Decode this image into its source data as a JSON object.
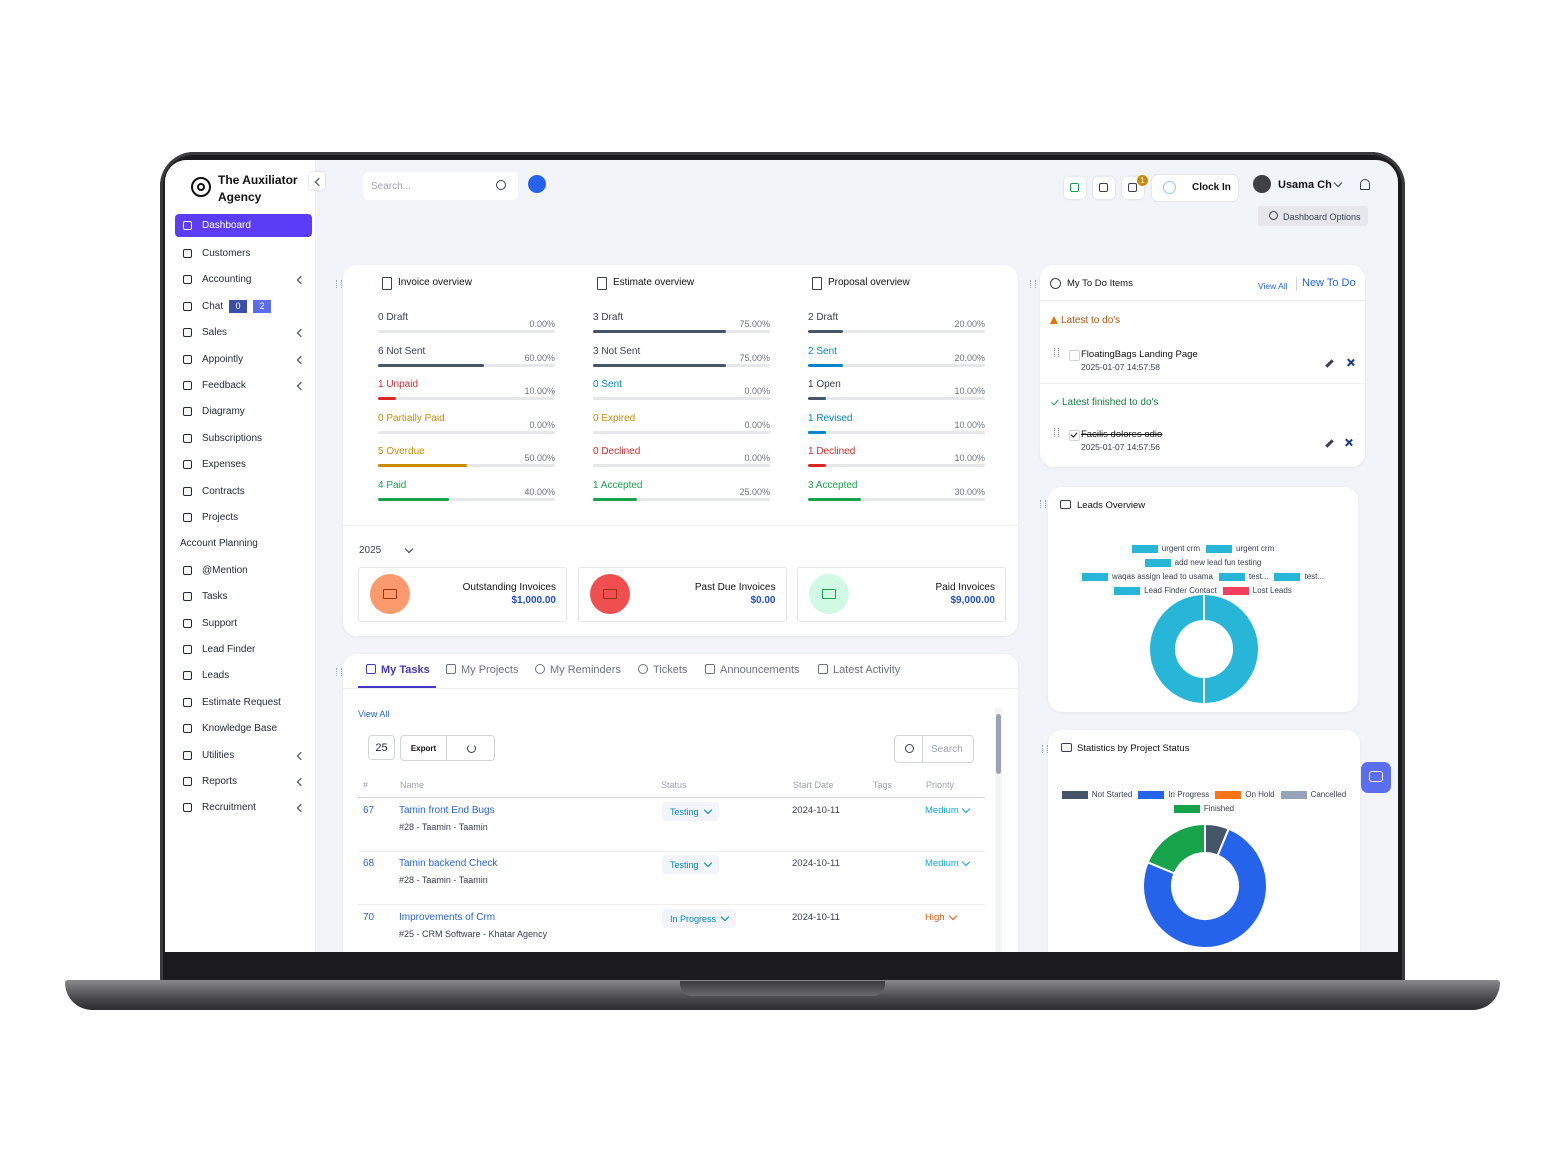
{
  "brand": "The Auxiliator Agency",
  "sidebar": [
    {
      "label": "Dashboard",
      "active": true
    },
    {
      "label": "Customers"
    },
    {
      "label": "Accounting",
      "submenu": true
    },
    {
      "label": "Chat",
      "badges": [
        "0",
        "2"
      ]
    },
    {
      "label": "Sales",
      "submenu": true
    },
    {
      "label": "Appointly",
      "submenu": true
    },
    {
      "label": "Feedback",
      "submenu": true
    },
    {
      "label": "Diagramy"
    },
    {
      "label": "Subscriptions"
    },
    {
      "label": "Expenses"
    },
    {
      "label": "Contracts"
    },
    {
      "label": "Projects"
    },
    {
      "label": "Account Planning",
      "no_icon": true
    },
    {
      "label": "@Mention"
    },
    {
      "label": "Tasks"
    },
    {
      "label": "Support"
    },
    {
      "label": "Lead Finder"
    },
    {
      "label": "Leads"
    },
    {
      "label": "Estimate Request"
    },
    {
      "label": "Knowledge Base"
    },
    {
      "label": "Utilities",
      "submenu": true
    },
    {
      "label": "Reports",
      "submenu": true
    },
    {
      "label": "Recruitment",
      "submenu": true
    }
  ],
  "header": {
    "search_placeholder": "Search...",
    "notification_count": "1",
    "clock_in": "Clock In",
    "user": "Usama Ch",
    "dashboard_options": "Dashboard Options"
  },
  "overviews": [
    {
      "title": "Invoice overview",
      "rows": [
        {
          "label": "0 Draft",
          "percent": {
            "value": 0,
            "label": "0.00%"
          },
          "color": "#475569"
        },
        {
          "label": "6 Not Sent",
          "percent": {
            "value": 60,
            "label": "60.00%"
          },
          "color": "#475569"
        },
        {
          "label": "1 Unpaid",
          "percent": {
            "value": 10,
            "label": "10.00%"
          },
          "color": "#dc2626"
        },
        {
          "label": "0 Partially Paid",
          "percent": {
            "value": 0,
            "label": "0.00%"
          },
          "color": "#ca8a04"
        },
        {
          "label": "5 Overdue",
          "percent": {
            "value": 50,
            "label": "50.00%"
          },
          "color": "#ca8a04"
        },
        {
          "label": "4 Paid",
          "percent": {
            "value": 40,
            "label": "40.00%"
          },
          "color": "#16a34a"
        }
      ]
    },
    {
      "title": "Estimate overview",
      "rows": [
        {
          "label": "3 Draft",
          "percent": {
            "value": 75,
            "label": "75.00%"
          },
          "color": "#475569"
        },
        {
          "label": "3 Not Sent",
          "percent": {
            "value": 75,
            "label": "75.00%"
          },
          "color": "#475569"
        },
        {
          "label": "0 Sent",
          "percent": {
            "value": 0,
            "label": "0.00%"
          },
          "color": "#0284c7"
        },
        {
          "label": "0 Expired",
          "percent": {
            "value": 0,
            "label": "0.00%"
          },
          "color": "#ca8a04"
        },
        {
          "label": "0 Declined",
          "percent": {
            "value": 0,
            "label": "0.00%"
          },
          "color": "#dc2626"
        },
        {
          "label": "1 Accepted",
          "percent": {
            "value": 25,
            "label": "25.00%"
          },
          "color": "#16a34a"
        }
      ]
    },
    {
      "title": "Proposal overview",
      "rows": [
        {
          "label": "2 Draft",
          "percent": {
            "value": 20,
            "label": "20.00%"
          },
          "color": "#475569"
        },
        {
          "label": "2 Sent",
          "percent": {
            "value": 20,
            "label": "20.00%"
          },
          "color": "#0284c7"
        },
        {
          "label": "1 Open",
          "percent": {
            "value": 10,
            "label": "10.00%"
          },
          "color": "#475569"
        },
        {
          "label": "1 Revised",
          "percent": {
            "value": 10,
            "label": "10.00%"
          },
          "color": "#0284c7"
        },
        {
          "label": "1 Declined",
          "percent": {
            "value": 10,
            "label": "10.00%"
          },
          "color": "#dc2626"
        },
        {
          "label": "3 Accepted",
          "percent": {
            "value": 30,
            "label": "30.00%"
          },
          "color": "#16a34a"
        }
      ]
    }
  ],
  "year": "2025",
  "stat_cards": [
    {
      "title": "Outstanding Invoices",
      "amount": "$1,000.00",
      "color": "#fb9a6c"
    },
    {
      "title": "Past Due Invoices",
      "amount": "$0.00",
      "color": "#f04f4f"
    },
    {
      "title": "Paid Invoices",
      "amount": "$9,000.00",
      "color": "#d1fae5"
    }
  ],
  "tabs": [
    "My Tasks",
    "My Projects",
    "My Reminders",
    "Tickets",
    "Announcements",
    "Latest Activity"
  ],
  "tasks": {
    "view_all": "View All",
    "page_size": "25",
    "export": "Export",
    "search_placeholder": "Search",
    "columns": [
      "#",
      "Name",
      "Status",
      "Start Date",
      "Tags",
      "Priority"
    ],
    "rows": [
      {
        "id": "67",
        "name": "Tamin front End Bugs",
        "project": "#28 - Taamin - Taamin",
        "status": "Testing",
        "start": "2024-10-11",
        "priority": "Medium",
        "priority_color": "#0ea5e9"
      },
      {
        "id": "68",
        "name": "Tamin backend Check",
        "project": "#28 - Taamin - Taamin",
        "status": "Testing",
        "start": "2024-10-11",
        "priority": "Medium",
        "priority_color": "#0ea5e9"
      },
      {
        "id": "70",
        "name": "Improvements of Crm",
        "project": "#25 - CRM Software - Khatar Agency",
        "status": "In Progress",
        "start": "2024-10-11",
        "priority": "High",
        "priority_color": "#ea580c"
      }
    ]
  },
  "todo": {
    "title": "My To Do Items",
    "view_all": "View All",
    "new": "New To Do",
    "latest": "Latest to do's",
    "latest_items": [
      {
        "text": "FloatingBags Landing Page",
        "date": "2025-01-07 14:57:58"
      }
    ],
    "finished": "Latest finished to do's",
    "finished_items": [
      {
        "text": "Facilis dolores odio",
        "date": "2025-01-07 14:57:56"
      }
    ]
  },
  "chart_data": [
    {
      "type": "pie",
      "title": "Leads Overview",
      "categories": [
        "urgent crm",
        "urgent crm",
        "add new lead fun testing",
        "waqas assign lead to usama",
        "test...",
        "test...",
        "Lead Finder Contact",
        "Lost Leads"
      ],
      "values": [
        1,
        1,
        0,
        0,
        0,
        0,
        0,
        0
      ],
      "colors": [
        "#28b6d8",
        "#28b6d8",
        "#28b6d8",
        "#28b6d8",
        "#28b6d8",
        "#28b6d8",
        "#28b6d8",
        "#f43f5e"
      ]
    },
    {
      "type": "pie",
      "title": "Statistics by Project Status",
      "categories": [
        "Not Started",
        "In Progress",
        "On Hold",
        "Cancelled",
        "Finished"
      ],
      "values": [
        1,
        12,
        0,
        0,
        3
      ],
      "colors": [
        "#475569",
        "#2563eb",
        "#f97316",
        "#94a3b8",
        "#16a34a"
      ]
    }
  ]
}
